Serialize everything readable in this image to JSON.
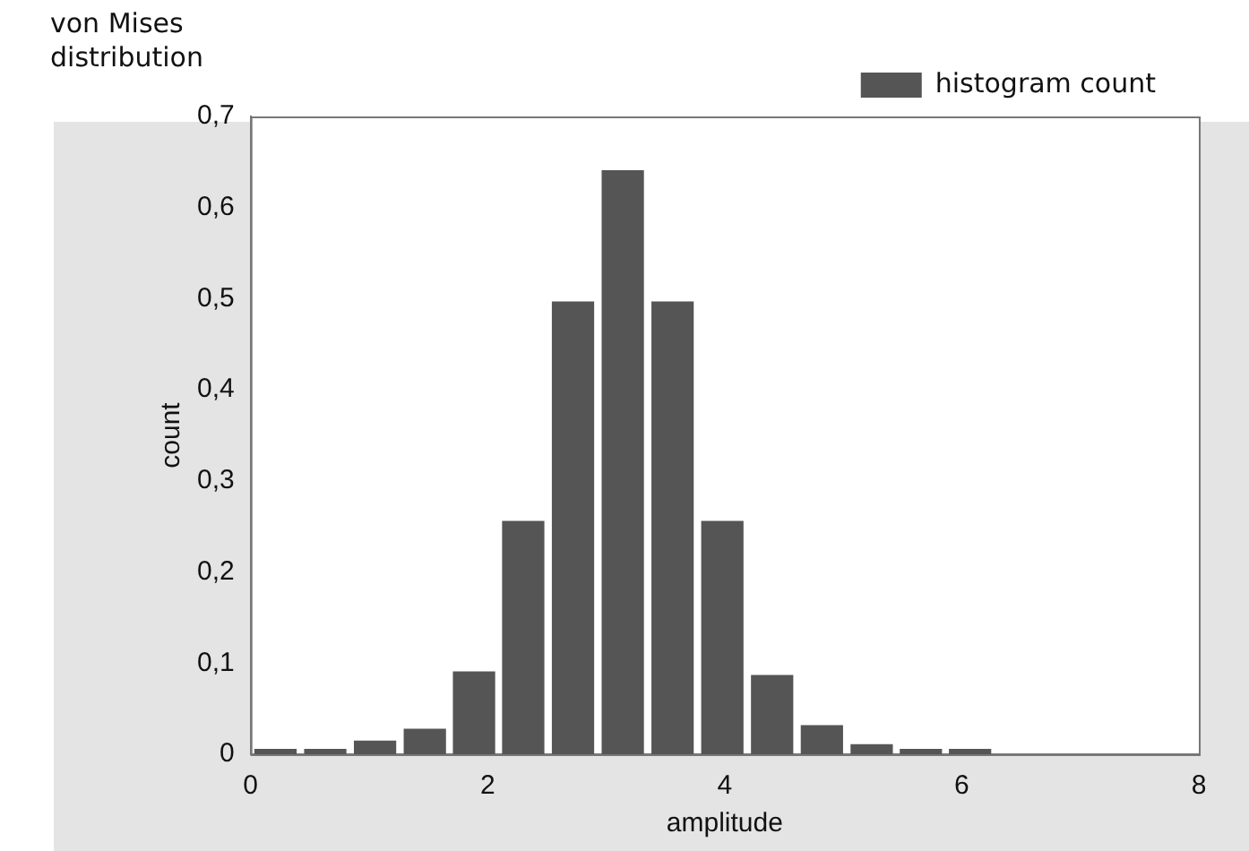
{
  "chart_data": {
    "type": "histogram",
    "title": "von Mises distribution",
    "xlabel": "amplitude",
    "ylabel": "count",
    "bins": [
      0,
      0.42,
      0.84,
      1.26,
      1.68,
      2.09,
      2.51,
      2.93,
      3.35,
      3.77,
      4.19,
      4.61,
      5.03,
      5.45,
      5.86,
      6.28
    ],
    "series": [
      {
        "name": "histogram count",
        "color": "#555555",
        "values": [
          0.006,
          0.006,
          0.015,
          0.028,
          0.091,
          0.256,
          0.497,
          0.641,
          0.497,
          0.256,
          0.087,
          0.032,
          0.011,
          0.006,
          0.006
        ]
      }
    ],
    "xlim": [
      0,
      8
    ],
    "xticks": [
      0,
      2,
      4,
      6,
      8
    ],
    "ylim": [
      0,
      0.7
    ],
    "yticks": [
      0,
      {
        "value": 0.1,
        "label": "0,1"
      },
      {
        "value": 0.2,
        "label": "0,2"
      },
      {
        "value": 0.3,
        "label": "0,3"
      },
      {
        "value": 0.4,
        "label": "0,4"
      },
      {
        "value": 0.5,
        "label": "0,5"
      },
      {
        "value": 0.6,
        "label": "0,6"
      },
      {
        "value": 0.7,
        "label": "0,7"
      }
    ],
    "grid": false,
    "legend": "top right"
  }
}
